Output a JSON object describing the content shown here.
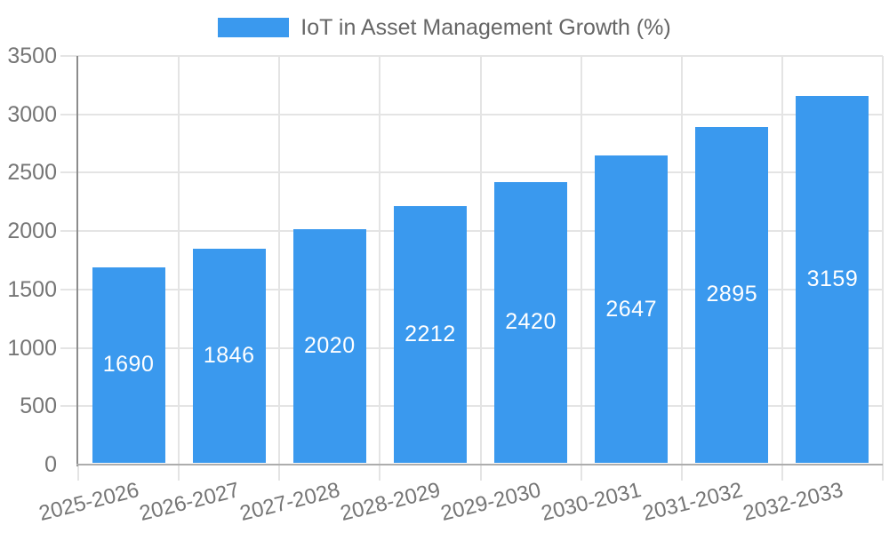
{
  "chart_data": {
    "type": "bar",
    "title": "IoT in Asset Management Growth (%)",
    "legend": {
      "label": "IoT in Asset Management Growth (%)",
      "position": "top-center"
    },
    "categories": [
      "2025-2026",
      "2026-2027",
      "2027-2028",
      "2028-2029",
      "2029-2030",
      "2030-2031",
      "2031-2032",
      "2032-2033"
    ],
    "values": [
      1690,
      1846,
      2020,
      2212,
      2420,
      2647,
      2895,
      3159
    ],
    "xlabel": "",
    "ylabel": "",
    "ylim": [
      0,
      3500
    ],
    "yticks": [
      0,
      500,
      1000,
      1500,
      2000,
      2500,
      3000,
      3500
    ],
    "grid": true,
    "x_label_rotation_deg": -14,
    "value_label_position": "center-of-bar",
    "colors": {
      "bar": "#3A99EE",
      "value_label": "#FFFFFF",
      "axis_text": "#757575",
      "legend_text": "#666666",
      "gridline": "#E4E4E4",
      "y_axis_line": "#8C8C8C",
      "x_axis_line": "#ADADAD",
      "background": "#FFFFFF"
    }
  }
}
